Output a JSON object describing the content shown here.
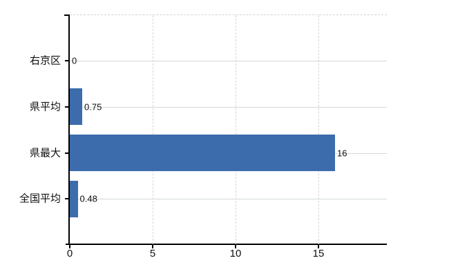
{
  "chart_data": {
    "type": "bar",
    "orientation": "horizontal",
    "title": "",
    "xlabel": "",
    "ylabel": "",
    "categories": [
      "右京区",
      "県平均",
      "県最大",
      "全国平均"
    ],
    "values": [
      0,
      0.75,
      16,
      0.48
    ],
    "data_labels": [
      "0",
      "0.75",
      "16",
      "0.48"
    ],
    "x_ticks": [
      0,
      5,
      10,
      15
    ],
    "x_tick_labels": [
      "0",
      "5",
      "10",
      "15"
    ],
    "xlim": [
      0,
      19.1
    ],
    "grid": true,
    "legend": "none",
    "colors": {
      "bar": "#3c6cab",
      "horizontal_gridline": "#d3dbd3",
      "vertical_gridline": "#dad3d5",
      "top_border": "#d2d2d2",
      "axis": "#000000",
      "text": "#0f0f0f",
      "background": "#ffffff"
    }
  }
}
